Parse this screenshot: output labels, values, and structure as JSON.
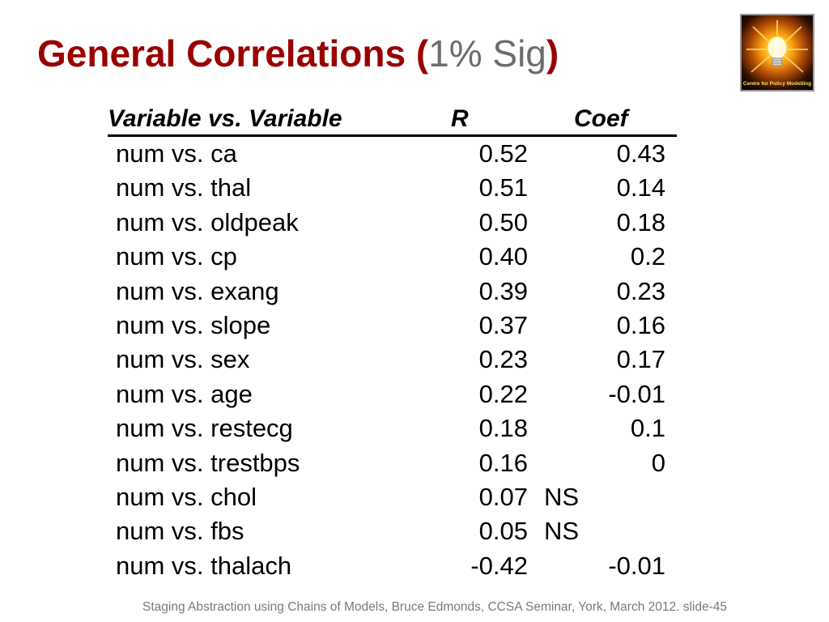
{
  "slide": {
    "title_main": "General Correlations (",
    "title_sig": "1% Sig",
    "title_close": ")",
    "logo_text": "Centre for Policy Modelling",
    "footer": "Staging Abstraction using Chains of Models, Bruce Edmonds, CCSA Seminar, York, March 2012. slide-45"
  },
  "table": {
    "headers": {
      "variable": "Variable vs. Variable",
      "r": "R",
      "coef": "Coef"
    },
    "rows": [
      {
        "variable": "num vs. ca",
        "r": "0.52",
        "coef": "0.43"
      },
      {
        "variable": "num vs. thal",
        "r": "0.51",
        "coef": "0.14"
      },
      {
        "variable": "num vs. oldpeak",
        "r": "0.50",
        "coef": "0.18"
      },
      {
        "variable": "num vs. cp",
        "r": "0.40",
        "coef": "0.2"
      },
      {
        "variable": "num vs. exang",
        "r": "0.39",
        "coef": "0.23"
      },
      {
        "variable": "num vs. slope",
        "r": "0.37",
        "coef": "0.16"
      },
      {
        "variable": "num vs. sex",
        "r": "0.23",
        "coef": "0.17"
      },
      {
        "variable": "num vs. age",
        "r": "0.22",
        "coef": "-0.01"
      },
      {
        "variable": "num vs. restecg",
        "r": "0.18",
        "coef": "0.1"
      },
      {
        "variable": "num vs. trestbps",
        "r": "0.16",
        "coef": "0"
      },
      {
        "variable": "num vs. chol",
        "r": "0.07",
        "coef": "NS"
      },
      {
        "variable": "num vs. fbs",
        "r": "0.05",
        "coef": "NS"
      },
      {
        "variable": "num vs. thalach",
        "r": "-0.42",
        "coef": "-0.01"
      }
    ]
  },
  "colors": {
    "title": "#990000",
    "title_sig": "#6d6d6d",
    "footer": "#7a7a7a",
    "text": "#000000"
  },
  "icons": {
    "logo": "lightbulb-icon"
  }
}
